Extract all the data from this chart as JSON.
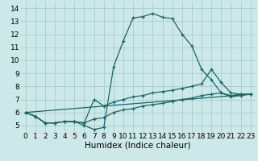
{
  "xlabel": "Humidex (Indice chaleur)",
  "background_color": "#cce8e8",
  "grid_color": "#aacccc",
  "line_color": "#1a6666",
  "xlim": [
    -0.5,
    23.5
  ],
  "ylim": [
    4.5,
    14.5
  ],
  "xticks": [
    0,
    1,
    2,
    3,
    4,
    5,
    6,
    7,
    8,
    9,
    10,
    11,
    12,
    13,
    14,
    15,
    16,
    17,
    18,
    19,
    20,
    21,
    22,
    23
  ],
  "yticks": [
    5,
    6,
    7,
    8,
    9,
    10,
    11,
    12,
    13,
    14
  ],
  "line1_x": [
    0,
    1,
    2,
    3,
    4,
    5,
    6,
    7,
    8,
    9,
    10,
    11,
    12,
    13,
    14,
    15,
    16,
    17,
    18,
    19,
    20,
    21,
    22,
    23
  ],
  "line1_y": [
    6.0,
    5.7,
    5.2,
    5.2,
    5.3,
    5.3,
    5.0,
    4.7,
    4.85,
    9.5,
    11.5,
    13.25,
    13.35,
    13.6,
    13.3,
    13.2,
    12.0,
    11.1,
    9.3,
    8.5,
    7.5,
    7.3,
    7.4,
    7.4
  ],
  "line2_x": [
    0,
    1,
    2,
    3,
    4,
    5,
    6,
    7,
    8,
    9,
    10,
    11,
    12,
    13,
    14,
    15,
    16,
    17,
    18,
    19,
    20,
    21,
    22,
    23
  ],
  "line2_y": [
    6.0,
    5.7,
    5.2,
    5.2,
    5.3,
    5.3,
    5.2,
    7.0,
    6.5,
    6.8,
    7.0,
    7.2,
    7.3,
    7.5,
    7.6,
    7.7,
    7.85,
    8.0,
    8.2,
    9.3,
    8.3,
    7.5,
    7.4,
    7.4
  ],
  "line3_x": [
    0,
    1,
    2,
    3,
    4,
    5,
    6,
    7,
    8,
    9,
    10,
    11,
    12,
    13,
    14,
    15,
    16,
    17,
    18,
    19,
    20,
    21,
    22,
    23
  ],
  "line3_y": [
    6.0,
    5.7,
    5.2,
    5.2,
    5.3,
    5.3,
    5.2,
    5.5,
    5.6,
    6.0,
    6.2,
    6.3,
    6.5,
    6.6,
    6.7,
    6.85,
    7.0,
    7.1,
    7.3,
    7.4,
    7.5,
    7.2,
    7.3,
    7.4
  ],
  "line4_x": [
    0,
    23
  ],
  "line4_y": [
    6.0,
    7.4
  ],
  "label_fontsize": 7.5,
  "tick_fontsize": 6.5
}
